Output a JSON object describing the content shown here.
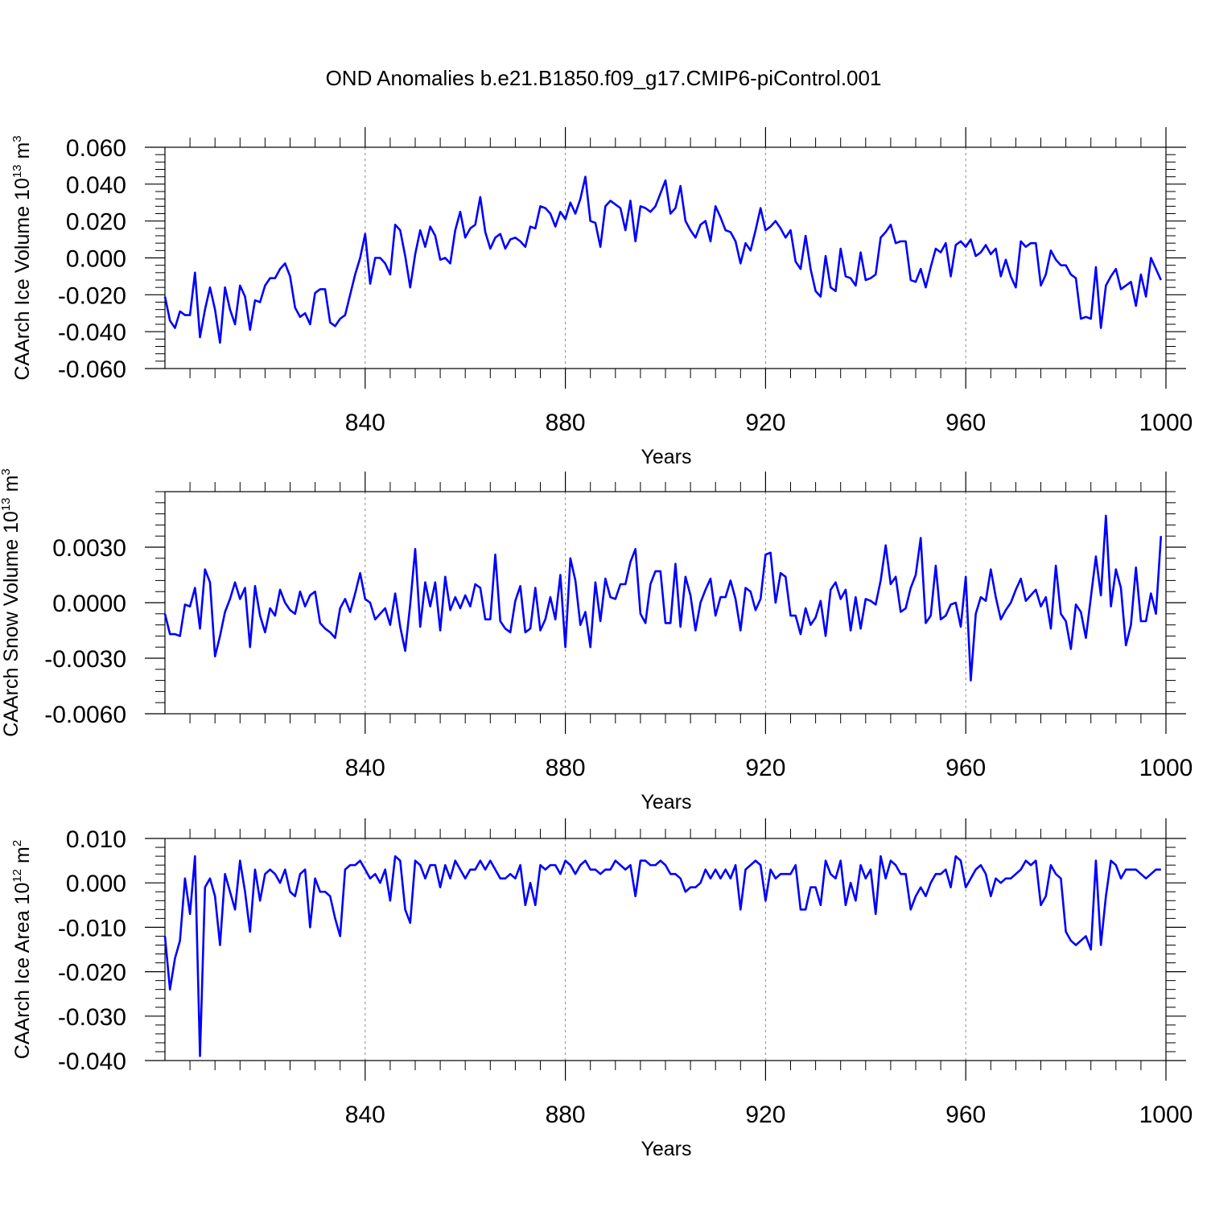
{
  "figure": {
    "title": "OND Anomalies b.e21.B1850.f09_g17.CMIP6-piControl.001"
  },
  "line_color": "#0000ff",
  "chart_data": [
    {
      "type": "line",
      "ylabel": "CAArch Ice Volume 10",
      "ylabel_exp": "13",
      "ylabel_unit": " m",
      "ylabel_unit_exp": "3",
      "xlabel": "Years",
      "xlim": [
        800,
        1000
      ],
      "ylim": [
        -0.06,
        0.06
      ],
      "xticks": [
        840,
        880,
        920,
        960,
        1000
      ],
      "xtick_labels": [
        "840",
        "880",
        "920",
        "960",
        "1000"
      ],
      "yticks": [
        -0.06,
        -0.04,
        -0.02,
        0.0,
        0.02,
        0.04,
        0.06
      ],
      "ytick_labels": [
        "-0.060",
        "-0.040",
        "-0.020",
        "0.000",
        "0.020",
        "0.040",
        "0.060"
      ],
      "series": [
        {
          "name": "Ice Volume",
          "x_start": 800,
          "x_step": 1,
          "values": [
            -0.021,
            -0.034,
            -0.038,
            -0.029,
            -0.031,
            -0.031,
            -0.008,
            -0.043,
            -0.028,
            -0.016,
            -0.028,
            -0.046,
            -0.016,
            -0.028,
            -0.036,
            -0.015,
            -0.021,
            -0.039,
            -0.023,
            -0.024,
            -0.015,
            -0.011,
            -0.011,
            -0.006,
            -0.003,
            -0.01,
            -0.027,
            -0.032,
            -0.03,
            -0.036,
            -0.019,
            -0.017,
            -0.017,
            -0.035,
            -0.037,
            -0.033,
            -0.031,
            -0.02,
            -0.009,
            0.0,
            0.013,
            -0.014,
            0.0,
            0.0,
            -0.003,
            -0.009,
            0.018,
            0.015,
            0.001,
            -0.016,
            0.002,
            0.015,
            0.006,
            0.017,
            0.012,
            -0.001,
            0.0,
            -0.003,
            0.015,
            0.025,
            0.011,
            0.016,
            0.018,
            0.033,
            0.014,
            0.005,
            0.011,
            0.013,
            0.005,
            0.01,
            0.011,
            0.009,
            0.006,
            0.017,
            0.016,
            0.028,
            0.027,
            0.024,
            0.017,
            0.025,
            0.021,
            0.03,
            0.024,
            0.032,
            0.044,
            0.02,
            0.019,
            0.006,
            0.028,
            0.031,
            0.029,
            0.027,
            0.015,
            0.031,
            0.009,
            0.028,
            0.027,
            0.025,
            0.028,
            0.035,
            0.042,
            0.024,
            0.027,
            0.039,
            0.02,
            0.015,
            0.011,
            0.018,
            0.02,
            0.009,
            0.028,
            0.022,
            0.015,
            0.014,
            0.009,
            -0.003,
            0.008,
            0.004,
            0.015,
            0.027,
            0.015,
            0.017,
            0.02,
            0.016,
            0.011,
            0.015,
            -0.002,
            -0.006,
            0.012,
            -0.006,
            -0.018,
            -0.021,
            0.001,
            -0.016,
            -0.018,
            0.005,
            -0.01,
            -0.011,
            -0.015,
            0.003,
            -0.012,
            -0.011,
            -0.009,
            0.011,
            0.014,
            0.018,
            0.008,
            0.009,
            0.009,
            -0.012,
            -0.013,
            -0.006,
            -0.016,
            -0.005,
            0.005,
            0.003,
            0.008,
            -0.01,
            0.007,
            0.009,
            0.006,
            0.01,
            0.001,
            0.003,
            0.007,
            0.002,
            0.005,
            -0.01,
            -0.001,
            -0.01,
            -0.016,
            0.009,
            0.006,
            0.008,
            0.008,
            -0.015,
            -0.009,
            0.004,
            -0.001,
            -0.004,
            -0.004,
            -0.009,
            -0.011,
            -0.033,
            -0.032,
            -0.033,
            -0.005,
            -0.038,
            -0.015,
            -0.01,
            -0.006,
            -0.017,
            -0.015,
            -0.013,
            -0.026,
            -0.009,
            -0.021,
            0.0,
            -0.006,
            -0.012
          ]
        }
      ]
    },
    {
      "type": "line",
      "ylabel": "CAArch Snow Volume 10",
      "ylabel_exp": "13",
      "ylabel_unit": " m",
      "ylabel_unit_exp": "3",
      "xlabel": "Years",
      "xlim": [
        800,
        1000
      ],
      "ylim": [
        -0.006,
        0.006
      ],
      "xticks": [
        840,
        880,
        920,
        960,
        1000
      ],
      "xtick_labels": [
        "840",
        "880",
        "920",
        "960",
        "1000"
      ],
      "yticks": [
        -0.006,
        -0.003,
        0.0,
        0.003
      ],
      "ytick_labels": [
        "-0.0060",
        "-0.0030",
        "0.0000",
        "0.0030"
      ],
      "series": [
        {
          "name": "Snow Volume",
          "x_start": 800,
          "x_step": 1,
          "values": [
            -0.0006,
            -0.0017,
            -0.0017,
            -0.0018,
            -0.0001,
            -0.0002,
            0.0008,
            -0.0014,
            0.0018,
            0.0011,
            -0.0029,
            -0.0018,
            -0.0005,
            0.0002,
            0.0011,
            0.0002,
            0.0008,
            -0.0024,
            0.0009,
            -0.0007,
            -0.0016,
            -0.0003,
            -0.0007,
            0.0007,
            0.0,
            -0.0004,
            -0.0006,
            0.0006,
            -0.0002,
            0.0004,
            0.0006,
            -0.0011,
            -0.0014,
            -0.0016,
            -0.0019,
            -0.0003,
            0.0002,
            -0.0005,
            0.0005,
            0.0016,
            0.0002,
            0.0,
            -0.0009,
            -0.0006,
            -0.0003,
            -0.0012,
            0.0005,
            -0.0013,
            -0.0026,
            -0.0001,
            0.0029,
            -0.0013,
            0.0011,
            -0.0002,
            0.0011,
            -0.0015,
            0.0014,
            -0.0004,
            0.0003,
            -0.0003,
            0.0004,
            -0.0002,
            0.001,
            0.0008,
            -0.0009,
            -0.0009,
            0.0026,
            -0.001,
            -0.0014,
            -0.0016,
            0.0001,
            0.0009,
            -0.0016,
            -0.0014,
            0.0008,
            -0.0015,
            -0.0009,
            0.0003,
            -0.0009,
            0.0015,
            -0.0024,
            0.0024,
            0.0012,
            -0.0012,
            -0.0005,
            -0.0024,
            0.0011,
            -0.001,
            0.0013,
            0.0003,
            0.0002,
            0.001,
            0.001,
            0.0022,
            0.0029,
            -0.0006,
            -0.0011,
            0.001,
            0.0017,
            0.0017,
            -0.0011,
            -0.0011,
            0.0021,
            -0.0013,
            0.0014,
            0.0004,
            -0.0015,
            0.0,
            0.0007,
            0.0013,
            -0.0007,
            0.0003,
            0.0003,
            0.0012,
            0.0002,
            -0.0015,
            0.0008,
            0.0006,
            -0.0004,
            0.0002,
            0.0026,
            0.0027,
            0.0,
            0.0016,
            0.0014,
            -0.0007,
            -0.0007,
            -0.0017,
            -0.0003,
            -0.0012,
            -0.0008,
            0.0001,
            -0.0018,
            0.0007,
            0.0011,
            0.0002,
            0.0007,
            -0.0015,
            0.0003,
            -0.0014,
            0.0002,
            0.0001,
            -0.0001,
            0.0012,
            0.0031,
            0.001,
            0.0014,
            -0.0005,
            -0.0003,
            0.0008,
            0.0015,
            0.0035,
            -0.0011,
            -0.0007,
            0.002,
            -0.0009,
            -0.0007,
            -0.0001,
            0.0,
            -0.0013,
            0.0014,
            -0.0042,
            -0.0006,
            0.0003,
            0.0001,
            0.0018,
            0.0003,
            -0.0009,
            -0.0004,
            0.0,
            0.0007,
            0.0013,
            0.0001,
            0.0004,
            0.0007,
            -0.0002,
            0.0003,
            -0.0014,
            0.002,
            -0.0006,
            -0.001,
            -0.0025,
            -0.0001,
            -0.0005,
            -0.0019,
            0.0003,
            0.0025,
            0.0004,
            0.0047,
            -0.0002,
            0.0018,
            0.0008,
            -0.0023,
            -0.0012,
            0.0019,
            -0.001,
            -0.001,
            0.0005,
            -0.0006,
            0.0036
          ]
        }
      ]
    },
    {
      "type": "line",
      "ylabel": "CAArch Ice Area 10",
      "ylabel_exp": "12",
      "ylabel_unit": " m",
      "ylabel_unit_exp": "2",
      "xlabel": "Years",
      "xlim": [
        800,
        1000
      ],
      "ylim": [
        -0.04,
        0.01
      ],
      "xticks": [
        840,
        880,
        920,
        960,
        1000
      ],
      "xtick_labels": [
        "840",
        "880",
        "920",
        "960",
        "1000"
      ],
      "yticks": [
        -0.04,
        -0.03,
        -0.02,
        -0.01,
        0.0,
        0.01
      ],
      "ytick_labels": [
        "-0.040",
        "-0.030",
        "-0.020",
        "-0.010",
        "0.000",
        "0.010"
      ],
      "series": [
        {
          "name": "Ice Area",
          "x_start": 800,
          "x_step": 1,
          "values": [
            -0.012,
            -0.024,
            -0.017,
            -0.013,
            0.001,
            -0.007,
            0.006,
            -0.039,
            -0.001,
            0.001,
            -0.003,
            -0.014,
            0.002,
            -0.002,
            -0.006,
            0.005,
            -0.002,
            -0.011,
            0.003,
            -0.004,
            0.002,
            0.003,
            0.002,
            0.0,
            0.003,
            -0.002,
            -0.003,
            0.002,
            0.003,
            -0.01,
            0.001,
            -0.002,
            -0.002,
            -0.003,
            -0.008,
            -0.012,
            0.003,
            0.004,
            0.004,
            0.005,
            0.003,
            0.001,
            0.002,
            0.0,
            0.003,
            -0.004,
            0.006,
            0.005,
            -0.006,
            -0.009,
            0.005,
            0.004,
            0.001,
            0.004,
            0.004,
            -0.001,
            0.004,
            0.001,
            0.005,
            0.003,
            0.001,
            0.003,
            0.003,
            0.005,
            0.003,
            0.005,
            0.003,
            0.001,
            0.001,
            0.002,
            0.001,
            0.004,
            -0.005,
            0.0,
            -0.005,
            0.004,
            0.003,
            0.004,
            0.004,
            0.002,
            0.005,
            0.004,
            0.002,
            0.004,
            0.005,
            0.003,
            0.003,
            0.002,
            0.003,
            0.003,
            0.005,
            0.004,
            0.003,
            0.004,
            -0.003,
            0.005,
            0.005,
            0.004,
            0.004,
            0.005,
            0.004,
            0.002,
            0.002,
            0.001,
            -0.002,
            -0.001,
            -0.001,
            0.0,
            0.003,
            0.001,
            0.003,
            0.001,
            0.003,
            0.001,
            0.004,
            -0.006,
            0.003,
            0.004,
            0.005,
            0.004,
            -0.004,
            0.003,
            0.001,
            0.002,
            0.002,
            0.002,
            0.004,
            -0.006,
            -0.006,
            -0.001,
            -0.001,
            -0.005,
            0.005,
            0.002,
            0.001,
            0.005,
            -0.005,
            0.0,
            -0.004,
            0.004,
            0.001,
            0.003,
            -0.007,
            0.006,
            0.001,
            0.005,
            0.004,
            0.002,
            0.002,
            -0.006,
            -0.003,
            -0.001,
            -0.003,
            0.0,
            0.002,
            0.002,
            0.003,
            -0.001,
            0.006,
            0.005,
            -0.001,
            0.001,
            0.003,
            0.004,
            0.002,
            -0.003,
            0.001,
            0.0,
            0.001,
            0.001,
            0.002,
            0.003,
            0.005,
            0.004,
            0.005,
            -0.005,
            -0.003,
            0.004,
            0.002,
            0.001,
            -0.011,
            -0.013,
            -0.014,
            -0.013,
            -0.012,
            -0.015,
            0.005,
            -0.014,
            -0.003,
            0.005,
            0.004,
            0.001,
            0.003,
            0.003,
            0.003,
            0.002,
            0.001,
            0.002,
            0.003,
            0.003
          ]
        }
      ]
    }
  ]
}
